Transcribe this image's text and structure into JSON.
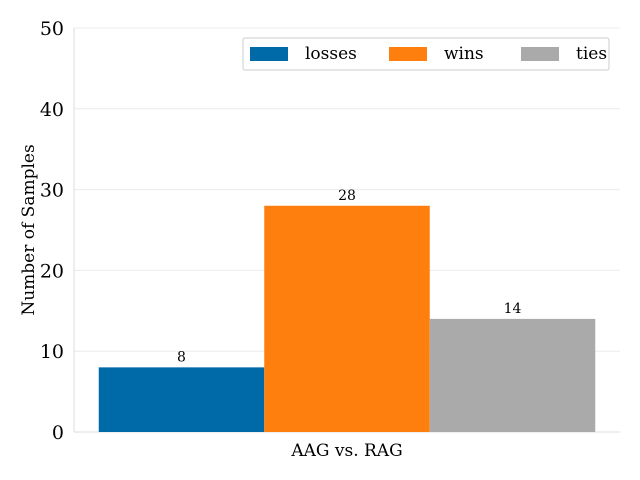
{
  "chart_data": {
    "type": "bar",
    "categories": [
      "AAG vs. RAG"
    ],
    "series": [
      {
        "name": "losses",
        "values": [
          8
        ],
        "color": "#0069a8"
      },
      {
        "name": "wins",
        "values": [
          28
        ],
        "color": "#fe7f0e"
      },
      {
        "name": "ties",
        "values": [
          14
        ],
        "color": "#aaaaaa"
      }
    ],
    "data_labels": [
      "8",
      "28",
      "14"
    ],
    "title": "",
    "xlabel": "",
    "ylabel": "Number of Samples",
    "ylim": [
      0,
      50
    ],
    "yticks": [
      0,
      10,
      20,
      30,
      40,
      50
    ],
    "grid": true,
    "legend_position": "top-right"
  }
}
